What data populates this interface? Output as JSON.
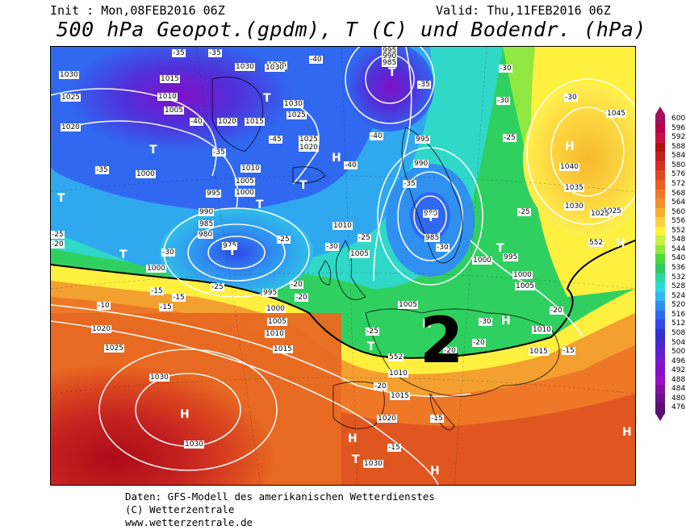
{
  "header": {
    "init": "Init : Mon,08FEB2016 06Z",
    "valid": "Valid: Thu,11FEB2016 06Z",
    "title": "500 hPa Geopot.(gpdm), T (C) und Bodendr. (hPa)"
  },
  "credits": [
    "Daten: GFS-Modell des amerikanischen Wetterdienstes",
    "(C) Wetterzentrale",
    "www.wetterzentrale.de"
  ],
  "annotation": {
    "big_number": "2"
  },
  "legend": {
    "values": [
      "600",
      "596",
      "592",
      "588",
      "584",
      "580",
      "576",
      "572",
      "568",
      "564",
      "560",
      "556",
      "552",
      "548",
      "544",
      "540",
      "536",
      "532",
      "528",
      "524",
      "520",
      "516",
      "512",
      "508",
      "504",
      "500",
      "496",
      "492",
      "488",
      "484",
      "480",
      "476"
    ],
    "colors": [
      "#a0105a",
      "#b8004a",
      "#c81040",
      "#b01010",
      "#c02020",
      "#d43020",
      "#e04820",
      "#e86020",
      "#f07828",
      "#f49030",
      "#f8b030",
      "#fcd040",
      "#fff040",
      "#c8f040",
      "#90e840",
      "#50d840",
      "#30c860",
      "#30d8a0",
      "#30d8d8",
      "#30b8f0",
      "#3090f0",
      "#3068f0",
      "#3048e8",
      "#3030d0",
      "#4828d0",
      "#6020d0",
      "#7818d0",
      "#8810c8",
      "#9810c0",
      "#8010a0",
      "#6a1088",
      "#5a1070"
    ]
  },
  "map": {
    "isobar_labels": [
      {
        "t": "1030"
      },
      {
        "t": "1025"
      },
      {
        "t": "1020"
      },
      {
        "t": "1015"
      },
      {
        "t": "1010"
      },
      {
        "t": "1005"
      },
      {
        "t": "1000"
      },
      {
        "t": "995"
      },
      {
        "t": "990"
      },
      {
        "t": "985"
      },
      {
        "t": "980"
      },
      {
        "t": "975"
      },
      {
        "t": "1045"
      },
      {
        "t": "1040"
      },
      {
        "t": "1035"
      },
      {
        "t": "995"
      },
      {
        "t": "1005"
      },
      {
        "t": "1000"
      },
      {
        "t": "1010"
      },
      {
        "t": "1015"
      },
      {
        "t": "1020"
      },
      {
        "t": "1025"
      },
      {
        "t": "1030"
      }
    ],
    "temp_labels": [
      "-45",
      "-40",
      "-35",
      "-30",
      "-25",
      "-20",
      "-15",
      "-10"
    ],
    "pressure_centers": [
      "H",
      "T"
    ],
    "contour_label_552": "552"
  }
}
